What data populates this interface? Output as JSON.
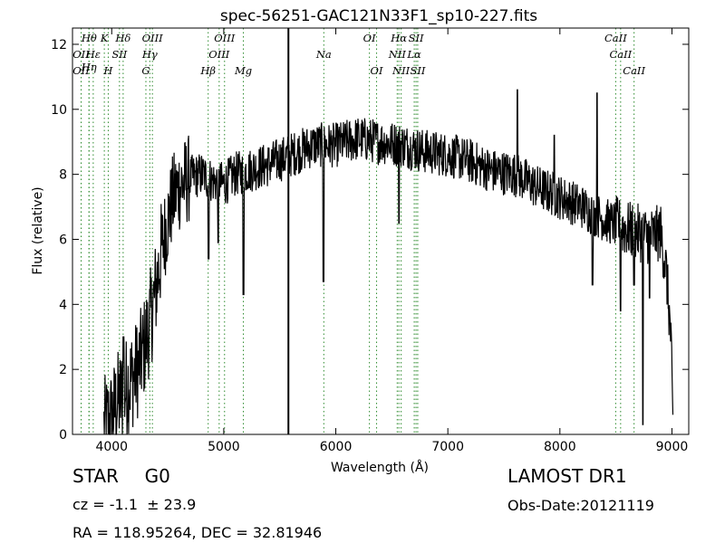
{
  "chart_data": {
    "type": "line",
    "title": "spec-56251-GAC121N33F1_sp10-227.fits",
    "xlabel": "Wavelength (Å)",
    "ylabel": "Flux (relative)",
    "xlim": [
      3650,
      9150
    ],
    "ylim": [
      0,
      12.5
    ],
    "xticks": [
      4000,
      5000,
      6000,
      7000,
      8000,
      9000
    ],
    "yticks": [
      0,
      2,
      4,
      6,
      8,
      10,
      12
    ],
    "grid": false,
    "line_color": "#000000",
    "marker_color": "#2e8b2e",
    "vertical_marker_x": 5577,
    "spectrum_anchors": [
      [
        3930,
        0.2
      ],
      [
        4000,
        0.5
      ],
      [
        4050,
        1.0
      ],
      [
        4100,
        1.2
      ],
      [
        4150,
        1.6
      ],
      [
        4200,
        1.8
      ],
      [
        4250,
        2.2
      ],
      [
        4300,
        2.8
      ],
      [
        4350,
        3.6
      ],
      [
        4400,
        4.6
      ],
      [
        4450,
        5.8
      ],
      [
        4500,
        6.6
      ],
      [
        4550,
        7.3
      ],
      [
        4600,
        7.6
      ],
      [
        4700,
        7.9
      ],
      [
        4800,
        8.0
      ],
      [
        4900,
        7.8
      ],
      [
        5000,
        7.7
      ],
      [
        5100,
        8.0
      ],
      [
        5200,
        8.1
      ],
      [
        5400,
        8.3
      ],
      [
        5600,
        8.6
      ],
      [
        5800,
        8.9
      ],
      [
        6000,
        8.9
      ],
      [
        6200,
        9.1
      ],
      [
        6400,
        9.0
      ],
      [
        6600,
        8.9
      ],
      [
        6800,
        8.7
      ],
      [
        7000,
        8.6
      ],
      [
        7200,
        8.4
      ],
      [
        7400,
        8.1
      ],
      [
        7600,
        8.0
      ],
      [
        7800,
        7.6
      ],
      [
        8000,
        7.3
      ],
      [
        8200,
        7.0
      ],
      [
        8400,
        6.6
      ],
      [
        8600,
        6.3
      ],
      [
        8800,
        6.1
      ],
      [
        8900,
        6.2
      ],
      [
        8950,
        5.0
      ],
      [
        8990,
        3.0
      ],
      [
        9010,
        0.0
      ]
    ],
    "spectrum_features": [
      {
        "x": 4105,
        "y": 3.0,
        "half_width": 5
      },
      {
        "x": 4863,
        "y": 5.4,
        "half_width": 5
      },
      {
        "x": 4950,
        "y": 5.9,
        "half_width": 4
      },
      {
        "x": 5175,
        "y": 4.3,
        "half_width": 5
      },
      {
        "x": 5890,
        "y": 4.7,
        "half_width": 4
      },
      {
        "x": 6563,
        "y": 6.5,
        "half_width": 4
      },
      {
        "x": 7620,
        "y": 10.6,
        "half_width": 4
      },
      {
        "x": 7950,
        "y": 9.2,
        "half_width": 4
      },
      {
        "x": 8290,
        "y": 4.6,
        "half_width": 5
      },
      {
        "x": 8330,
        "y": 10.5,
        "half_width": 3
      },
      {
        "x": 8542,
        "y": 3.8,
        "half_width": 4
      },
      {
        "x": 8662,
        "y": 4.6,
        "half_width": 4
      },
      {
        "x": 8740,
        "y": 0.3,
        "half_width": 3
      },
      {
        "x": 8800,
        "y": 4.2,
        "half_width": 3
      }
    ],
    "spectral_lines": [
      {
        "label": "Hθ",
        "x": 3798,
        "row": 0
      },
      {
        "label": "K",
        "x": 3934,
        "row": 0
      },
      {
        "label": "Hδ",
        "x": 4102,
        "row": 0
      },
      {
        "label": "OIII",
        "x": 4363,
        "row": 0
      },
      {
        "label": "OIII",
        "x": 5007,
        "row": 0
      },
      {
        "label": "OI",
        "x": 6300,
        "row": 0
      },
      {
        "label": "Hα",
        "x": 6563,
        "row": 0
      },
      {
        "label": "SII",
        "x": 6716,
        "row": 0
      },
      {
        "label": "CaII",
        "x": 8498,
        "row": 0
      },
      {
        "label": "OII",
        "x": 3727,
        "row": 1
      },
      {
        "label": "Hε",
        "x": 3835,
        "row": 1
      },
      {
        "label": "SII",
        "x": 4069,
        "row": 1
      },
      {
        "label": "Hγ",
        "x": 4340,
        "row": 1
      },
      {
        "label": "OIII",
        "x": 4959,
        "row": 1
      },
      {
        "label": "NII",
        "x": 6548,
        "row": 1
      },
      {
        "label": "Lα",
        "x": 6700,
        "row": 1
      },
      {
        "label": "CaII",
        "x": 8542,
        "row": 1
      },
      {
        "label": "Hη",
        "x": 3797,
        "row": 1.5
      },
      {
        "label": "OII",
        "x": 3727,
        "row": 2
      },
      {
        "label": "H",
        "x": 3969,
        "row": 2
      },
      {
        "label": "G",
        "x": 4305,
        "row": 2
      },
      {
        "label": "Hβ",
        "x": 4861,
        "row": 2
      },
      {
        "label": "Mg",
        "x": 5175,
        "row": 2
      },
      {
        "label": "Na",
        "x": 5893,
        "row": 1
      },
      {
        "label": "OI",
        "x": 6364,
        "row": 2
      },
      {
        "label": "NII",
        "x": 6583,
        "row": 2
      },
      {
        "label": "SII",
        "x": 6731,
        "row": 2
      },
      {
        "label": "CaII",
        "x": 8662,
        "row": 2
      }
    ]
  },
  "info": {
    "object_class": "STAR",
    "subclass": "G0",
    "survey": "LAMOST DR1",
    "redshift": "cz = -1.1  ± 23.9",
    "obs_date": "Obs-Date:20121119",
    "coords": "RA = 118.95264, DEC = 32.81946"
  }
}
